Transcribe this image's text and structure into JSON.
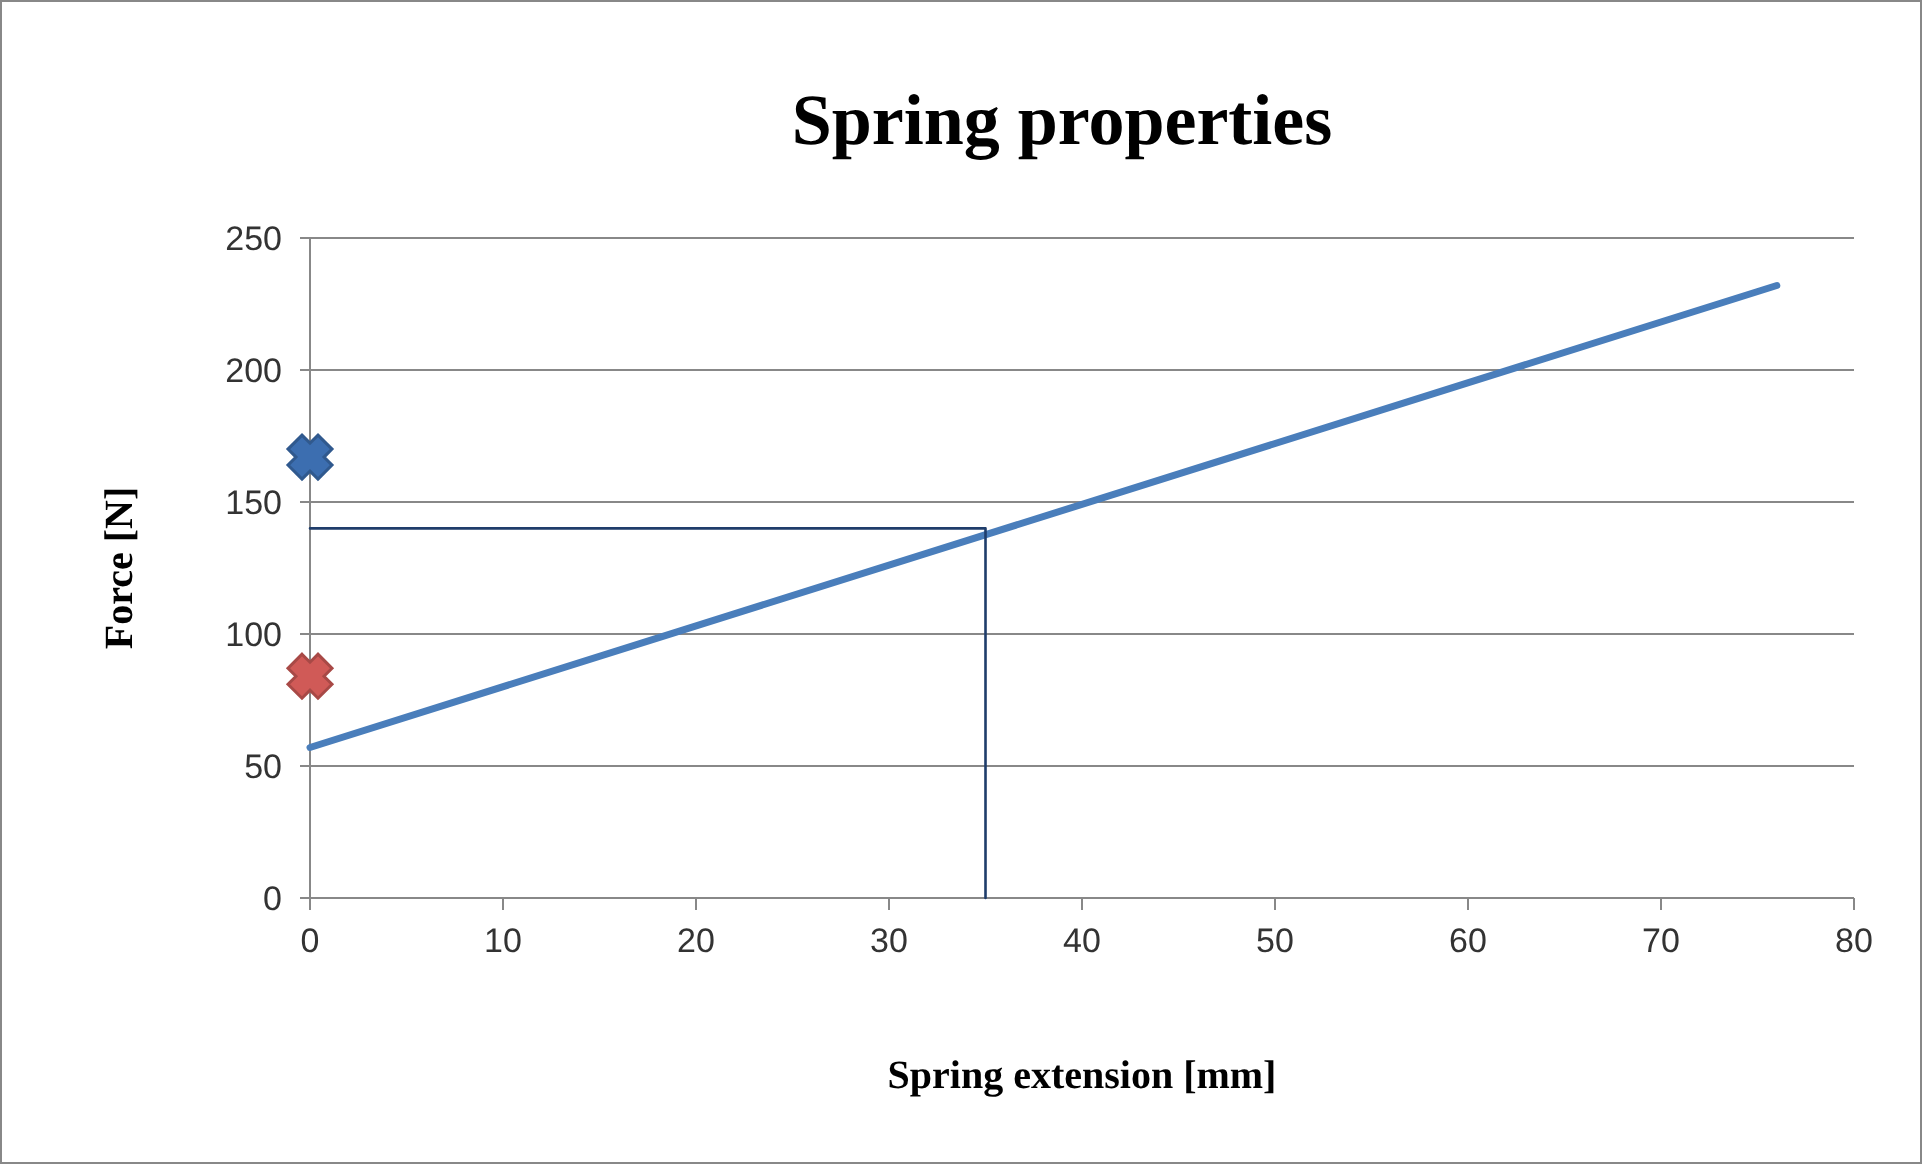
{
  "chart_data": {
    "type": "line",
    "title": "Spring properties",
    "xlabel": "Spring extension [mm]",
    "ylabel": "Force [N]",
    "xlim": [
      0,
      80
    ],
    "xticks": [
      0,
      10,
      20,
      30,
      40,
      50,
      60,
      70,
      80
    ],
    "ylim": [
      0,
      250
    ],
    "yticks": [
      0,
      50,
      100,
      150,
      200,
      250
    ],
    "grid": "y",
    "series": [
      {
        "color": "#4a7ebb",
        "x": [
          0,
          76
        ],
        "values": [
          57,
          232
        ],
        "marker": "none",
        "line_style": "solid"
      },
      {
        "color": "#1f3d6b",
        "x": [
          0,
          35,
          35
        ],
        "values": [
          140,
          140,
          0
        ],
        "marker": "none",
        "line_style": "solid"
      },
      {
        "type": "scatter",
        "color": "#3c6eb0",
        "x": [
          0
        ],
        "values": [
          167
        ],
        "marker": "cross"
      },
      {
        "type": "scatter",
        "color": "#d05a57",
        "x": [
          0
        ],
        "values": [
          84
        ],
        "marker": "cross"
      }
    ]
  }
}
